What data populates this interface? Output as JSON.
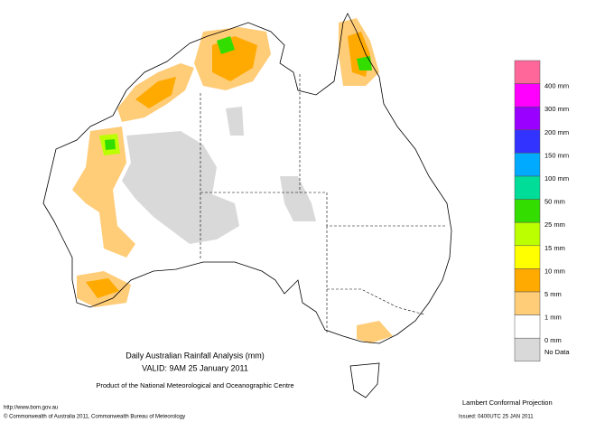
{
  "title": "Daily Australian Rainfall Analysis (mm)",
  "valid": "VALID: 9AM 25 January 2011",
  "product": "Product of the National Meteorological and Oceanographic Centre",
  "url": "http://www.bom.gov.au",
  "copyright": "© Commonwealth of Australia 2011, Commonwealth Bureau of Meteorology",
  "projection": "Lambert Conformal Projection",
  "issued": "Issued: 0400UTC 25 JAN 2011",
  "legend": {
    "colors": [
      "#ff6699",
      "#ff00ff",
      "#9900ff",
      "#3333ff",
      "#00aaff",
      "#00dd99",
      "#33dd00",
      "#bbff00",
      "#ffff00",
      "#ffaa00",
      "#ffcc77",
      "#ffffff",
      "#d9d9d9"
    ],
    "labels": [
      "400 mm",
      "300 mm",
      "200 mm",
      "150 mm",
      "100 mm",
      "50 mm",
      "25 mm",
      "15 mm",
      "10 mm",
      "5 mm",
      "1 mm",
      "0 mm",
      "No Data"
    ]
  }
}
